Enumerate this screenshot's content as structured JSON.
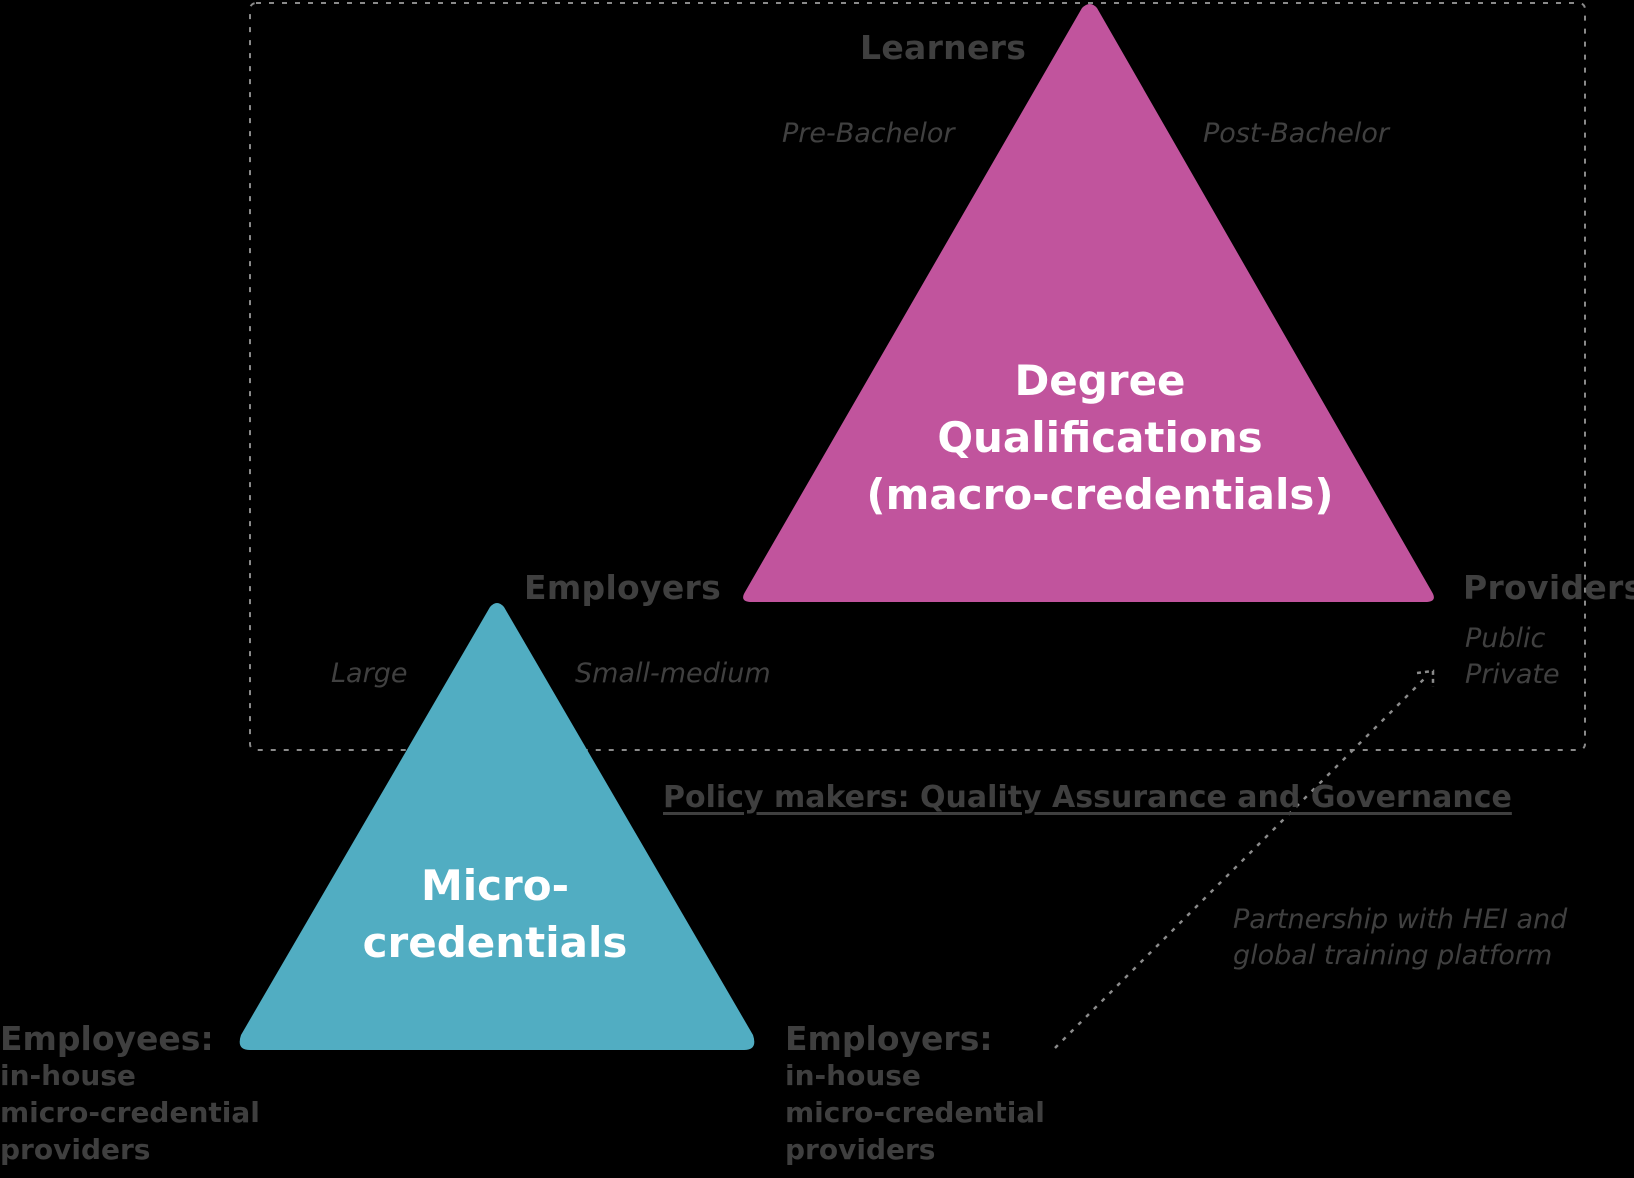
{
  "colors": {
    "background": "#000000",
    "degree_triangle": "#c1549d",
    "micro_triangle": "#51adc2",
    "label_text": "#3f3f3f",
    "dashed_line": "#8a8a8a"
  },
  "degree": {
    "title_lines": [
      "Degree",
      "Qualifications",
      "(macro-credentials)"
    ],
    "vertices": {
      "top": "Learners",
      "left": "Employers",
      "right": "Providers"
    },
    "learner_types": {
      "left": "Pre-Bachelor",
      "right": "Post-Bachelor"
    },
    "provider_types": [
      "Public",
      "Private"
    ],
    "employer_types": {
      "left": "Large",
      "right": "Small-medium"
    }
  },
  "micro": {
    "title_lines": [
      "Micro-",
      "credentials"
    ],
    "left_vertex": {
      "head": "Employees:",
      "lines": [
        "in-house",
        "micro-credential",
        "providers"
      ]
    },
    "right_vertex": {
      "head": "Employers:",
      "lines": [
        "in-house",
        "micro-credential",
        "providers"
      ]
    }
  },
  "policy_label": "Policy makers: Quality Assurance and Governance",
  "partnership_lines": [
    "Partnership with HEI and",
    "global training platform"
  ]
}
